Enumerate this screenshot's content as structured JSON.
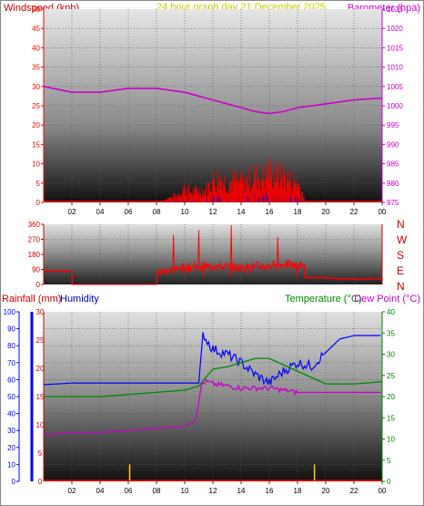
{
  "chart_data": [
    {
      "type": "bar",
      "title": "24 hour graph day   21 December 2025",
      "ylabel_left": "Windspeed (kph)",
      "ylabel_right": "Barometer (hpa)",
      "ylim_left": [
        0,
        50
      ],
      "ylim_right": [
        975,
        1025
      ],
      "yticks_left": [
        "0",
        "5",
        "10",
        "15",
        "20",
        "25",
        "30",
        "35",
        "40",
        "45",
        "50"
      ],
      "yticks_right": [
        "975",
        "980",
        "985",
        "990",
        "995",
        "1000",
        "1005",
        "1010",
        "1015",
        "1020",
        "1025"
      ],
      "xticks": [
        "02",
        "04",
        "06",
        "08",
        "10",
        "12",
        "14",
        "16",
        "18",
        "20",
        "22",
        "00"
      ],
      "colors": {
        "windspeed": "#ff0000",
        "gust": "#0000cc",
        "barometer": "#cc00cc"
      },
      "barometer": {
        "x": [
          0,
          2,
          4,
          6,
          8,
          10,
          12,
          14,
          15,
          16,
          17,
          18,
          20,
          22,
          24
        ],
        "y": [
          1005,
          1003.5,
          1003.5,
          1004.5,
          1004.5,
          1003.5,
          1001.5,
          999.5,
          998.5,
          998,
          998.5,
          999.5,
          1000.5,
          1001.5,
          1002
        ]
      },
      "windspeed": {
        "x": [
          8.5,
          9,
          9.5,
          10,
          10.5,
          11,
          11.5,
          12,
          12.5,
          13,
          13.5,
          14,
          14.5,
          15,
          15.5,
          16,
          16.5,
          17,
          17.5,
          18,
          18.5
        ],
        "y": [
          1,
          2,
          3,
          6,
          4,
          5,
          5,
          9,
          10,
          8,
          9,
          8,
          9,
          11,
          10,
          13,
          11,
          11,
          9,
          8,
          2
        ]
      }
    },
    {
      "type": "line",
      "ylabel_right": [
        "N",
        "W",
        "S",
        "E",
        "N"
      ],
      "ylim": [
        0,
        360
      ],
      "yticks": [
        "0",
        "90",
        "180",
        "270",
        "360"
      ],
      "colors": {
        "direction": "#ff0000"
      },
      "direction": {
        "x": [
          0,
          2,
          2.01,
          8,
          8.01,
          10,
          12,
          14,
          16,
          17,
          18,
          18.5,
          18.51,
          20,
          22,
          24
        ],
        "y": [
          80,
          80,
          0,
          0,
          70,
          100,
          110,
          100,
          110,
          120,
          110,
          120,
          40,
          40,
          30,
          35
        ]
      }
    },
    {
      "type": "line",
      "ylabel_left_1": "Rainfall (mm)",
      "ylabel_left_2": "Humidity",
      "ylabel_right_1": "Temperature (°C)",
      "ylabel_right_2": "Dew Point (°C)",
      "ylim_humidity": [
        0,
        100
      ],
      "ylim_rain": [
        0,
        30
      ],
      "ylim_temp": [
        0,
        40
      ],
      "yticks_humidity": [
        "0",
        "10",
        "20",
        "30",
        "40",
        "50",
        "60",
        "70",
        "80",
        "90",
        "100"
      ],
      "yticks_rain": [
        "0",
        "5",
        "10",
        "15",
        "20",
        "25",
        "30"
      ],
      "yticks_temp": [
        "0",
        "5",
        "10",
        "15",
        "20",
        "25",
        "30",
        "35",
        "40"
      ],
      "xticks": [
        "02",
        "04",
        "06",
        "08",
        "10",
        "12",
        "14",
        "16",
        "18",
        "20",
        "22",
        "00"
      ],
      "colors": {
        "humidity": "#0000ff",
        "temperature": "#008800",
        "dewpoint": "#cc00cc",
        "rainfall": "#ffcc00",
        "rain_axis": "#0000ff"
      },
      "humidity": {
        "x": [
          0,
          2,
          4,
          6,
          8,
          10,
          11,
          11.3,
          11.5,
          12,
          13,
          14,
          15,
          16,
          17,
          18,
          19,
          20,
          21,
          22,
          23,
          24
        ],
        "y": [
          57,
          58,
          58,
          58,
          58,
          58,
          58,
          88,
          84,
          78,
          75,
          70,
          63,
          58,
          65,
          70,
          68,
          76,
          84,
          86,
          86,
          86
        ]
      },
      "temperature": {
        "x": [
          0,
          2,
          4,
          6,
          8,
          10,
          11,
          12,
          13,
          14,
          15,
          16,
          17,
          18,
          19,
          20,
          22,
          24
        ],
        "y": [
          20,
          20,
          20,
          20.5,
          21,
          21.5,
          22.5,
          26.5,
          27,
          28,
          29,
          29,
          27.5,
          26,
          24.5,
          23,
          23,
          23.5
        ]
      },
      "dewpoint": {
        "x": [
          0,
          2,
          4,
          6,
          8,
          10,
          10.8,
          11.2,
          11.5,
          12,
          14,
          16,
          18,
          20,
          22,
          24
        ],
        "y": [
          11,
          11.5,
          11.5,
          12,
          12.5,
          13,
          14.5,
          23,
          23.5,
          23,
          22,
          22,
          21,
          21,
          21,
          21
        ]
      },
      "rainfall": {
        "x": [
          6.1,
          19.2
        ],
        "y": [
          3,
          3
        ]
      }
    }
  ]
}
